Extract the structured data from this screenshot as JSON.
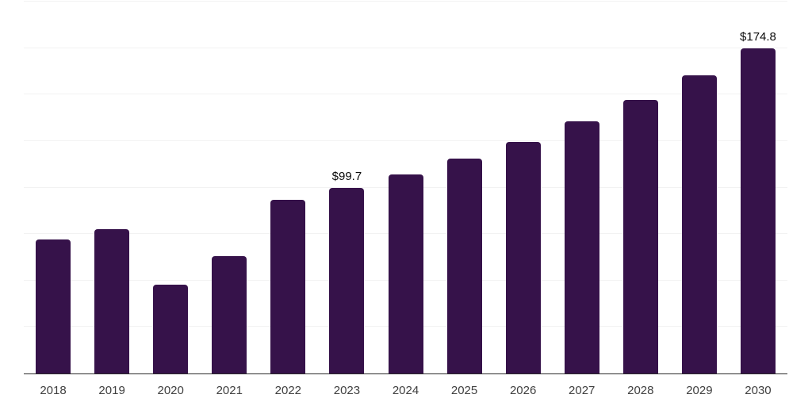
{
  "chart_data": {
    "type": "bar",
    "title": "",
    "xlabel": "",
    "ylabel": "",
    "categories": [
      "2018",
      "2019",
      "2020",
      "2021",
      "2022",
      "2023",
      "2024",
      "2025",
      "2026",
      "2027",
      "2028",
      "2029",
      "2030"
    ],
    "values": [
      72.0,
      77.6,
      47.7,
      63.0,
      93.3,
      99.7,
      107.2,
      115.5,
      124.7,
      135.5,
      147.0,
      160.3,
      174.8
    ],
    "data_labels": [
      "",
      "",
      "",
      "",
      "",
      "$99.7",
      "",
      "",
      "",
      "",
      "",
      "",
      "$174.8"
    ],
    "ylim": [
      0,
      200
    ],
    "grid_step": 25,
    "grid": true,
    "legend": false,
    "y_tick_labels_visible": false
  },
  "style": {
    "bar": "#36124A",
    "grid": "#F2F2F2",
    "axis": "#2B2B2B",
    "tick_label": "#3F3F3F",
    "value_label": "#0A0A0A",
    "background": "#FFFFFF"
  }
}
